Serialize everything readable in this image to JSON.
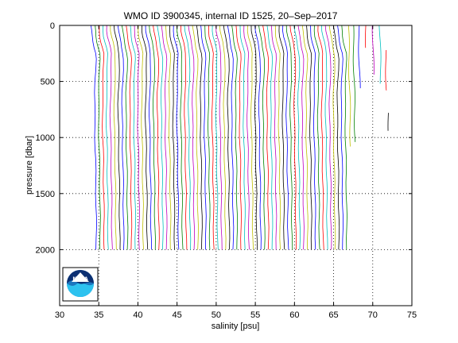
{
  "chart_data": {
    "type": "line",
    "title": "WMO ID 3900345, internal ID 1525, 20–Sep–2017",
    "xlabel": "salinity [psu]",
    "ylabel": "pressure [dbar]",
    "xlim": [
      30,
      75
    ],
    "ylim": [
      2500,
      0
    ],
    "y_reversed": true,
    "grid": true,
    "x_ticks": [
      30,
      35,
      40,
      45,
      50,
      55,
      60,
      65,
      70,
      75
    ],
    "y_ticks": [
      0,
      500,
      1000,
      1500,
      2000
    ],
    "profile_count": 65,
    "profile_offset_psu": 0.5,
    "profile_shape": {
      "pressure": [
        0,
        50,
        100,
        150,
        200,
        250,
        300,
        400,
        500,
        600,
        700,
        800,
        900,
        1000,
        1100,
        1200,
        1300,
        1400,
        1500,
        1600,
        1700,
        1800,
        1900,
        2000
      ],
      "salinity": [
        34.0,
        34.05,
        34.15,
        34.3,
        34.45,
        34.6,
        34.63,
        34.6,
        34.55,
        34.5,
        34.48,
        34.48,
        34.5,
        34.52,
        34.55,
        34.58,
        34.6,
        34.62,
        34.64,
        34.65,
        34.66,
        34.67,
        34.68,
        34.69
      ]
    },
    "profile_colors": [
      "#0000ff",
      "#008000",
      "#ff0000",
      "#00bfbf",
      "#bf00bf",
      "#bfbf00",
      "#000000"
    ]
  },
  "logo": {
    "text": "NOAA",
    "icon": "noaa-logo"
  }
}
